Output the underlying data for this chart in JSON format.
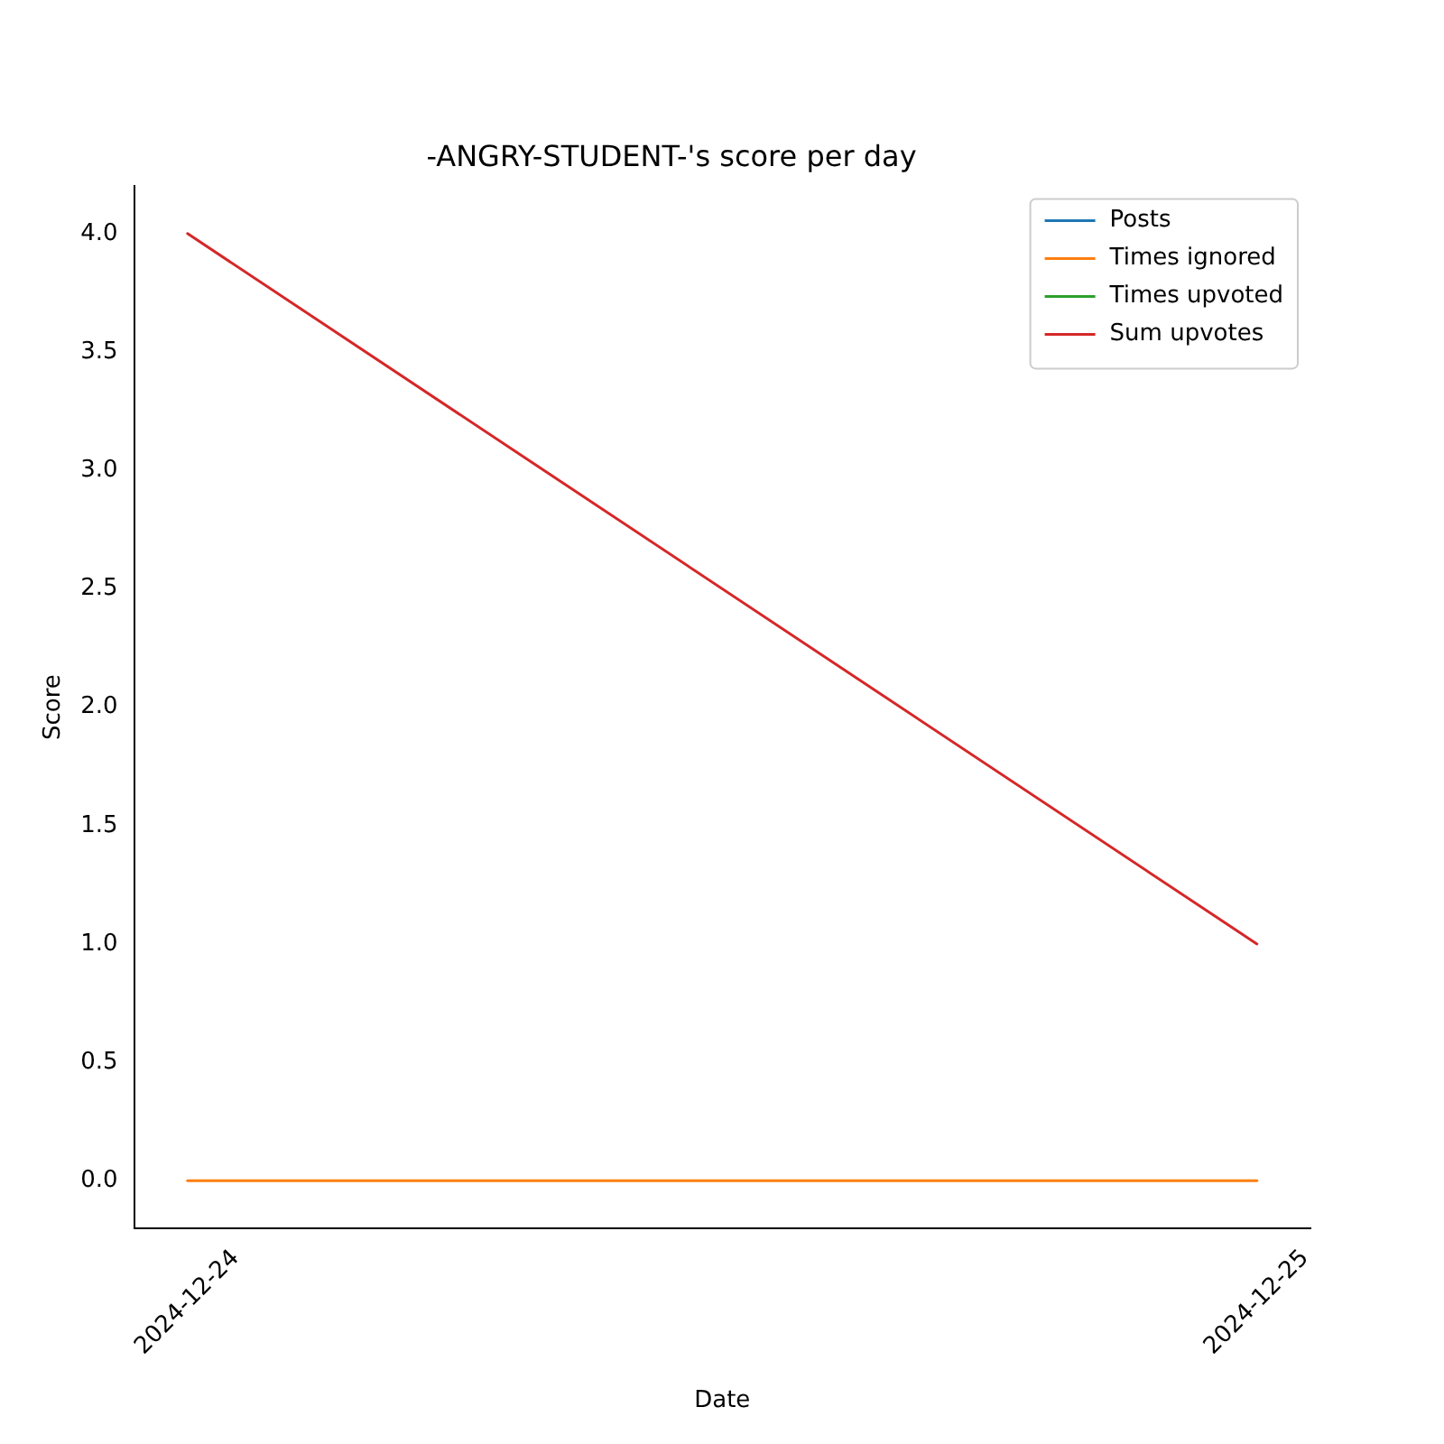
{
  "chart_data": {
    "type": "line",
    "title": "-ANGRY-STUDENT-'s score per day",
    "xlabel": "Date",
    "ylabel": "Score",
    "x": [
      "2024-12-24",
      "2024-12-25"
    ],
    "xlim": [
      "2024-12-23T22:48",
      "2024-12-25T01:12"
    ],
    "xticks": [
      "2024-12-24",
      "2024-12-25"
    ],
    "series": [
      {
        "name": "Posts",
        "color": "#1f77b4",
        "values": [
          null,
          null
        ]
      },
      {
        "name": "Times ignored",
        "color": "#ff7f0e",
        "values": [
          0,
          0
        ]
      },
      {
        "name": "Times upvoted",
        "color": "#2ca02c",
        "values": [
          null,
          null
        ]
      },
      {
        "name": "Sum upvotes",
        "color": "#d62728",
        "values": [
          4,
          1
        ]
      }
    ],
    "ylim": [
      -0.2,
      4.2
    ],
    "yticks": [
      {
        "value": 0,
        "label": "0.0"
      },
      {
        "value": 0.5,
        "label": "0.5"
      },
      {
        "value": 1,
        "label": "1.0"
      },
      {
        "value": 1.5,
        "label": "1.5"
      },
      {
        "value": 2,
        "label": "2.0"
      },
      {
        "value": 2.5,
        "label": "2.5"
      },
      {
        "value": 3,
        "label": "3.0"
      },
      {
        "value": 3.5,
        "label": "3.5"
      },
      {
        "value": 4,
        "label": "4.0"
      }
    ],
    "grid": false,
    "legend": "top right",
    "marker": "none",
    "line_style": "solid"
  }
}
